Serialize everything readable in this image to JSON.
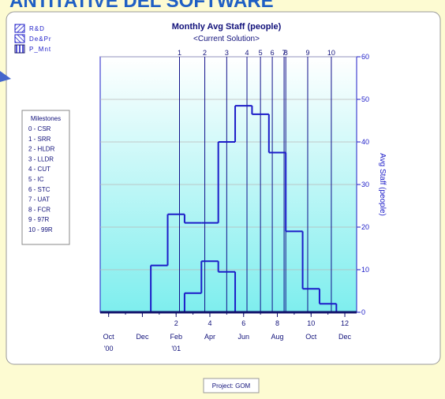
{
  "header": {
    "title": "ANTITATIVE DEL SOFTWARE"
  },
  "chart_data": {
    "type": "step",
    "title": "Monthly Avg Staff (people)",
    "subtitle": "<Current Solution>",
    "y_label": "Avg Staff (people)",
    "xlim": [
      -2.5,
      12.7
    ],
    "ylim": [
      0,
      60
    ],
    "yticks": [
      0,
      10,
      20,
      30,
      40,
      50,
      60
    ],
    "grid": true,
    "xticks": [
      {
        "value": -2,
        "label": "Oct"
      },
      {
        "value": 0,
        "label": "Dec"
      },
      {
        "value": 2,
        "label": "Feb"
      },
      {
        "value": 4,
        "label": "Apr"
      },
      {
        "value": 6,
        "label": "Jun"
      },
      {
        "value": 8,
        "label": "Aug"
      },
      {
        "value": 10,
        "label": "Oct"
      },
      {
        "value": 12,
        "label": "Dec"
      }
    ],
    "xticks_numbers": [
      2,
      4,
      6,
      8,
      10,
      12
    ],
    "year_labels": [
      {
        "value": -2,
        "label": "'00"
      },
      {
        "value": 2,
        "label": "'01"
      }
    ],
    "series": [
      {
        "name": "R&D",
        "color": "#1c1cc8",
        "x": [
          0,
          1,
          2,
          3,
          4,
          5,
          6,
          7,
          8,
          9,
          10,
          11
        ],
        "values": [
          0,
          11,
          23,
          21,
          21,
          40,
          48.5,
          46.5,
          37.5,
          19,
          5.5,
          2
        ]
      },
      {
        "name": "De&Pr",
        "color": "#1c1cc8",
        "x": [
          3,
          4,
          5
        ],
        "values": [
          4.5,
          12,
          9.5
        ]
      },
      {
        "name": "P_Mnt",
        "color": "#10106a",
        "x": [],
        "values": []
      }
    ],
    "milestones": [
      {
        "label": "1",
        "x": 2.2
      },
      {
        "label": "2",
        "x": 3.7
      },
      {
        "label": "3",
        "x": 5.0
      },
      {
        "label": "4",
        "x": 6.2
      },
      {
        "label": "5",
        "x": 7.0
      },
      {
        "label": "6",
        "x": 7.7
      },
      {
        "label": "7",
        "x": 8.4
      },
      {
        "label": "8",
        "x": 8.5
      },
      {
        "label": "9",
        "x": 9.8
      },
      {
        "label": "10",
        "x": 11.2
      }
    ],
    "milestone_legend": {
      "title": "Milestones",
      "items": [
        "0 - CSR",
        "1 - SRR",
        "2 - HLDR",
        "3 - LLDR",
        "4 - CUT",
        "5 - IC",
        "6 - STC",
        "7 - UAT",
        "8 - FCR",
        "9 - 97R",
        "10 - 99R"
      ]
    }
  },
  "footer": {
    "project": "Project: GOM"
  }
}
